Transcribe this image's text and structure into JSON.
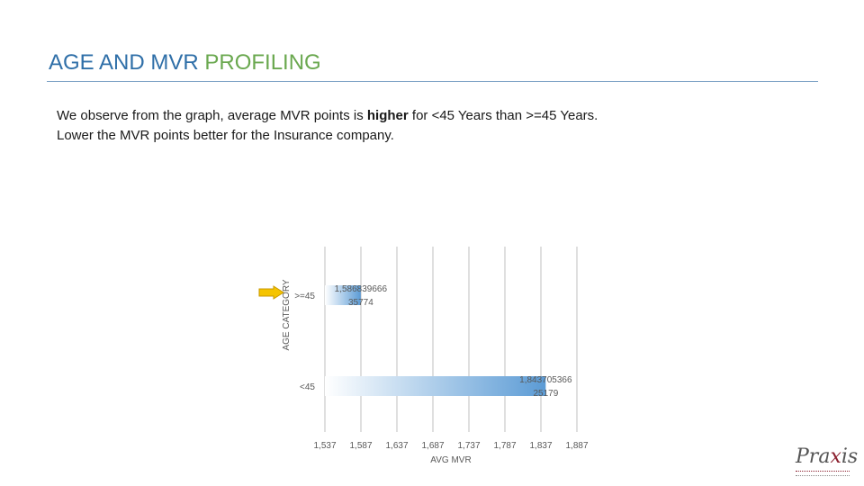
{
  "header": {
    "title_main": "AGE AND MVR",
    "title_accent": "PROFILING"
  },
  "body": {
    "line1_prefix": "We observe from the graph, average MVR points is ",
    "line1_bold": "higher",
    "line1_suffix": " for <45 Years than >=45 Years.",
    "line2": "Lower the MVR points better for the Insurance company."
  },
  "logo": {
    "text_prefix": "Pra",
    "text_x": "x",
    "text_suffix": "is"
  },
  "chart_data": {
    "type": "bar",
    "orientation": "horizontal",
    "categories": [
      ">=45",
      "<45"
    ],
    "values": [
      1586.839666,
      1843.705366
    ],
    "data_labels": [
      [
        "1,586839666",
        "35774"
      ],
      [
        "1,843705366",
        "25179"
      ]
    ],
    "xlabel": "AVG MVR",
    "ylabel": "AGE CATEGORY",
    "xlim": [
      1537,
      1887
    ],
    "x_ticks": [
      "1,537",
      "1,587",
      "1,637",
      "1,687",
      "1,737",
      "1,787",
      "1,837",
      "1,887"
    ],
    "grid": true,
    "highlight": ">=45",
    "bar_color": "#5b9bd5"
  }
}
